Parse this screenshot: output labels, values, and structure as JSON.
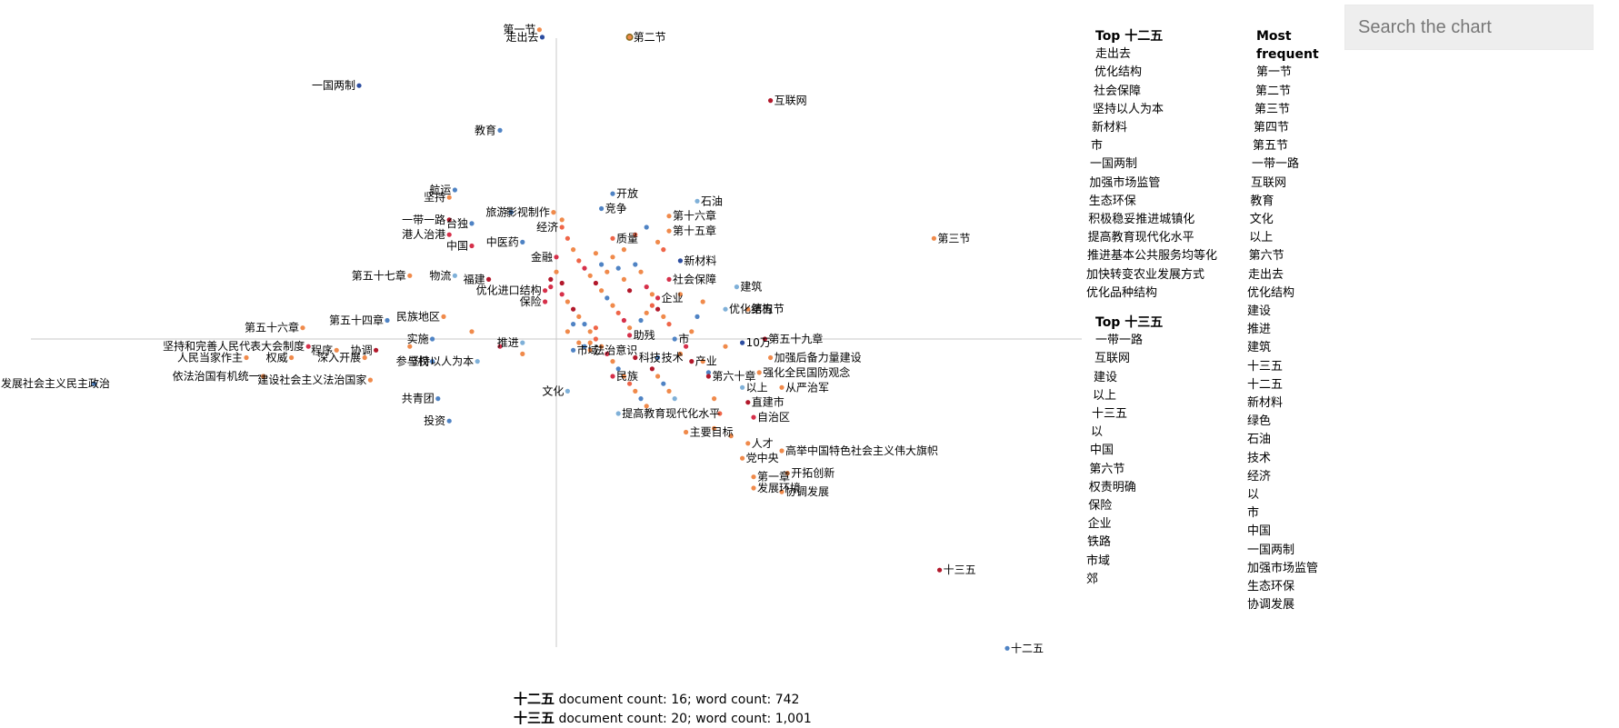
{
  "search": {
    "placeholder": "Search the chart"
  },
  "panels": {
    "top_a_title": "Top 十二五",
    "top_a_terms": [
      "走出去",
      "优化结构",
      "社会保障",
      "坚持以人为本",
      "新材料",
      "市",
      "一国两制",
      "加强市场监管",
      "生态环保",
      "积极稳妥推进城镇化",
      "提高教育现代化水平",
      "推进基本公共服务均等化",
      "加快转变农业发展方式",
      "优化品种结构"
    ],
    "top_b_title": "Top 十三五",
    "top_b_terms": [
      "一带一路",
      "互联网",
      "建设",
      "以上",
      "十三五",
      "以",
      "中国",
      "第六节",
      "权责明确",
      "保险",
      "企业",
      "铁路",
      "市域",
      "郊"
    ],
    "freq_title": "Most frequent",
    "freq_terms": [
      "第一节",
      "第二节",
      "第三节",
      "第四节",
      "第五节",
      "一带一路",
      "互联网",
      "教育",
      "文化",
      "以上",
      "第六节",
      "走出去",
      "优化结构",
      "建设",
      "推进",
      "建筑",
      "十三五",
      "十二五",
      "新材料",
      "绿色",
      "石油",
      "技术",
      "经济",
      "以",
      "市",
      "中国",
      "一国两制",
      "加强市场监管",
      "生态环保",
      "协调发展"
    ]
  },
  "footer": {
    "cat_a": "十二五",
    "cat_a_text": "document count: 16; word count: 742",
    "cat_b": "十三五",
    "cat_b_text": "document count: 20; word count: 1,001"
  },
  "chart_data": {
    "type": "scatter",
    "title": "",
    "xlabel": "",
    "ylabel": "",
    "xlim": [
      -1,
      1
    ],
    "ylim": [
      -1,
      1
    ],
    "grid": false,
    "categories": [
      "十二五",
      "十三五"
    ],
    "colors": {
      "strong_a": "#2c4da0",
      "mid_a": "#4f83c4",
      "light_a": "#7fb0d8",
      "strong_b": "#b2182b",
      "mid_b": "#d6304a",
      "light_b": "#ef6548",
      "neutral": "#f08a4b",
      "highlight_ring": "#8a6d1e"
    },
    "labeled_points": [
      {
        "term": "第一节",
        "x": -0.03,
        "y": 0.83,
        "c": "neutral"
      },
      {
        "term": "走出去",
        "x": -0.025,
        "y": 0.81,
        "c": "strong_a"
      },
      {
        "term": "第二节",
        "x": 0.13,
        "y": 0.81,
        "c": "highlight"
      },
      {
        "term": "一国两制",
        "x": -0.35,
        "y": 0.68,
        "c": "strong_a"
      },
      {
        "term": "互联网",
        "x": 0.38,
        "y": 0.64,
        "c": "strong_b"
      },
      {
        "term": "教育",
        "x": -0.1,
        "y": 0.56,
        "c": "mid_a"
      },
      {
        "term": "航运",
        "x": -0.18,
        "y": 0.4,
        "c": "mid_a"
      },
      {
        "term": "坚持",
        "x": -0.19,
        "y": 0.38,
        "c": "neutral"
      },
      {
        "term": "旅游",
        "x": -0.08,
        "y": 0.34,
        "c": "mid_a"
      },
      {
        "term": "影视制作",
        "x": -0.005,
        "y": 0.34,
        "c": "neutral"
      },
      {
        "term": "开放",
        "x": 0.1,
        "y": 0.39,
        "c": "mid_a"
      },
      {
        "term": "竞争",
        "x": 0.08,
        "y": 0.35,
        "c": "mid_a"
      },
      {
        "term": "石油",
        "x": 0.25,
        "y": 0.37,
        "c": "light_a"
      },
      {
        "term": "一带一路",
        "x": -0.19,
        "y": 0.32,
        "c": "strong_b"
      },
      {
        "term": "台独",
        "x": -0.15,
        "y": 0.31,
        "c": "mid_a"
      },
      {
        "term": "港人治港",
        "x": -0.19,
        "y": 0.28,
        "c": "mid_b"
      },
      {
        "term": "经济",
        "x": 0.01,
        "y": 0.3,
        "c": "light_b"
      },
      {
        "term": "中医药",
        "x": -0.06,
        "y": 0.26,
        "c": "mid_a"
      },
      {
        "term": "质量",
        "x": 0.1,
        "y": 0.27,
        "c": "light_b"
      },
      {
        "term": "第十六章",
        "x": 0.2,
        "y": 0.33,
        "c": "neutral"
      },
      {
        "term": "第十五章",
        "x": 0.2,
        "y": 0.29,
        "c": "neutral"
      },
      {
        "term": "中国",
        "x": -0.15,
        "y": 0.25,
        "c": "mid_b"
      },
      {
        "term": "金融",
        "x": 0.0,
        "y": 0.22,
        "c": "mid_b"
      },
      {
        "term": "新材料",
        "x": 0.22,
        "y": 0.21,
        "c": "strong_a"
      },
      {
        "term": "第三节",
        "x": 0.67,
        "y": 0.27,
        "c": "neutral"
      },
      {
        "term": "第五十七章",
        "x": -0.26,
        "y": 0.17,
        "c": "neutral"
      },
      {
        "term": "物流",
        "x": -0.18,
        "y": 0.17,
        "c": "light_a"
      },
      {
        "term": "福建",
        "x": -0.12,
        "y": 0.16,
        "c": "strong_b"
      },
      {
        "term": "社会保障",
        "x": 0.2,
        "y": 0.16,
        "c": "mid_b"
      },
      {
        "term": "优化进口结构",
        "x": -0.02,
        "y": 0.13,
        "c": "mid_b"
      },
      {
        "term": "建筑",
        "x": 0.32,
        "y": 0.14,
        "c": "light_a"
      },
      {
        "term": "企业",
        "x": 0.18,
        "y": 0.11,
        "c": "mid_b"
      },
      {
        "term": "保险",
        "x": -0.02,
        "y": 0.1,
        "c": "mid_b"
      },
      {
        "term": "优化结构",
        "x": 0.3,
        "y": 0.08,
        "c": "light_a"
      },
      {
        "term": "第五节",
        "x": 0.34,
        "y": 0.08,
        "c": "neutral"
      },
      {
        "term": "民族地区",
        "x": -0.2,
        "y": 0.06,
        "c": "neutral"
      },
      {
        "term": "第五十四章",
        "x": -0.3,
        "y": 0.05,
        "c": "mid_a"
      },
      {
        "term": "第五十六章",
        "x": -0.45,
        "y": 0.03,
        "c": "neutral"
      },
      {
        "term": "实施",
        "x": -0.22,
        "y": 0.0,
        "c": "mid_a"
      },
      {
        "term": "助残",
        "x": 0.13,
        "y": 0.01,
        "c": "mid_b"
      },
      {
        "term": "推进",
        "x": -0.06,
        "y": -0.01,
        "c": "light_a"
      },
      {
        "term": "市",
        "x": 0.21,
        "y": 0.0,
        "c": "mid_a"
      },
      {
        "term": "10万",
        "x": 0.33,
        "y": -0.01,
        "c": "strong_a"
      },
      {
        "term": "第五十九章",
        "x": 0.37,
        "y": 0.0,
        "c": "strong_b"
      },
      {
        "term": "坚持和完善人民代表大会制度",
        "x": -0.44,
        "y": -0.02,
        "c": "mid_b"
      },
      {
        "term": "程序",
        "x": -0.39,
        "y": -0.03,
        "c": "neutral"
      },
      {
        "term": "协调",
        "x": -0.32,
        "y": -0.03,
        "c": "strong_b"
      },
      {
        "term": "市域",
        "x": 0.03,
        "y": -0.03,
        "c": "mid_a"
      },
      {
        "term": "法治意识",
        "x": 0.06,
        "y": -0.03,
        "c": "neutral"
      },
      {
        "term": "科技",
        "x": 0.14,
        "y": -0.05,
        "c": "strong_b"
      },
      {
        "term": "技术",
        "x": 0.18,
        "y": -0.05,
        "c": "mid_a"
      },
      {
        "term": "产业",
        "x": 0.24,
        "y": -0.06,
        "c": "strong_b"
      },
      {
        "term": "加强后备力量建设",
        "x": 0.38,
        "y": -0.05,
        "c": "neutral"
      },
      {
        "term": "人民当家作主",
        "x": -0.55,
        "y": -0.05,
        "c": "neutral"
      },
      {
        "term": "权威",
        "x": -0.47,
        "y": -0.05,
        "c": "neutral"
      },
      {
        "term": "深入开展",
        "x": -0.34,
        "y": -0.05,
        "c": "neutral"
      },
      {
        "term": "参与权",
        "x": -0.22,
        "y": -0.06,
        "c": "mid_a"
      },
      {
        "term": "坚持以人为本",
        "x": -0.14,
        "y": -0.06,
        "c": "light_a"
      },
      {
        "term": "民族",
        "x": 0.1,
        "y": -0.1,
        "c": "mid_b"
      },
      {
        "term": "第六十章",
        "x": 0.27,
        "y": -0.1,
        "c": "strong_b"
      },
      {
        "term": "强化全民国防观念",
        "x": 0.36,
        "y": -0.09,
        "c": "neutral"
      },
      {
        "term": "依法治国有机统一",
        "x": -0.52,
        "y": -0.1,
        "c": "neutral"
      },
      {
        "term": "建设社会主义法治国家",
        "x": -0.33,
        "y": -0.11,
        "c": "neutral"
      },
      {
        "term": "发展社会主义民主政治",
        "x": -0.82,
        "y": -0.12,
        "c": "mid_a"
      },
      {
        "term": "以上",
        "x": 0.33,
        "y": -0.13,
        "c": "light_a"
      },
      {
        "term": "文化",
        "x": 0.02,
        "y": -0.14,
        "c": "light_a"
      },
      {
        "term": "从严治军",
        "x": 0.4,
        "y": -0.13,
        "c": "neutral"
      },
      {
        "term": "直建市",
        "x": 0.34,
        "y": -0.17,
        "c": "strong_b"
      },
      {
        "term": "共青团",
        "x": -0.21,
        "y": -0.16,
        "c": "mid_a"
      },
      {
        "term": "自治区",
        "x": 0.35,
        "y": -0.21,
        "c": "mid_b"
      },
      {
        "term": "投资",
        "x": -0.19,
        "y": -0.22,
        "c": "mid_a"
      },
      {
        "term": "提高教育现代化水平",
        "x": 0.11,
        "y": -0.2,
        "c": "light_a"
      },
      {
        "term": "主要目标",
        "x": 0.23,
        "y": -0.25,
        "c": "neutral"
      },
      {
        "term": "人才",
        "x": 0.34,
        "y": -0.28,
        "c": "neutral"
      },
      {
        "term": "高举中国特色社会主义伟大旗帜",
        "x": 0.4,
        "y": -0.3,
        "c": "neutral"
      },
      {
        "term": "党中央",
        "x": 0.33,
        "y": -0.32,
        "c": "neutral"
      },
      {
        "term": "开拓创新",
        "x": 0.41,
        "y": -0.36,
        "c": "neutral"
      },
      {
        "term": "第一章",
        "x": 0.35,
        "y": -0.37,
        "c": "neutral"
      },
      {
        "term": "发展环境",
        "x": 0.35,
        "y": -0.4,
        "c": "neutral"
      },
      {
        "term": "协调发展",
        "x": 0.4,
        "y": -0.41,
        "c": "neutral"
      },
      {
        "term": "十三五",
        "x": 0.68,
        "y": -0.62,
        "c": "strong_b"
      },
      {
        "term": "十二五",
        "x": 0.8,
        "y": -0.83,
        "c": "mid_a"
      }
    ],
    "unlabeled_points": [
      [
        0.01,
        0.32,
        "neutral"
      ],
      [
        0.02,
        0.27,
        "light_b"
      ],
      [
        0.03,
        0.24,
        "neutral"
      ],
      [
        0.04,
        0.21,
        "light_b"
      ],
      [
        0.05,
        0.19,
        "mid_b"
      ],
      [
        0.06,
        0.17,
        "neutral"
      ],
      [
        0.07,
        0.15,
        "strong_b"
      ],
      [
        0.08,
        0.13,
        "neutral"
      ],
      [
        0.09,
        0.11,
        "mid_a"
      ],
      [
        0.1,
        0.09,
        "neutral"
      ],
      [
        0.11,
        0.07,
        "light_b"
      ],
      [
        0.12,
        0.05,
        "mid_b"
      ],
      [
        0.13,
        0.03,
        "neutral"
      ],
      [
        0.14,
        0.2,
        "mid_a"
      ],
      [
        0.15,
        0.18,
        "neutral"
      ],
      [
        0.16,
        0.14,
        "mid_b"
      ],
      [
        0.17,
        0.12,
        "neutral"
      ],
      [
        0.18,
        0.08,
        "strong_b"
      ],
      [
        0.19,
        0.06,
        "neutral"
      ],
      [
        0.2,
        0.04,
        "light_b"
      ],
      [
        0.01,
        0.12,
        "mid_b"
      ],
      [
        0.02,
        0.1,
        "neutral"
      ],
      [
        0.03,
        0.08,
        "strong_b"
      ],
      [
        0.04,
        0.06,
        "neutral"
      ],
      [
        0.05,
        0.04,
        "mid_a"
      ],
      [
        0.06,
        0.02,
        "neutral"
      ],
      [
        0.07,
        0.0,
        "light_b"
      ],
      [
        0.08,
        -0.02,
        "neutral"
      ],
      [
        0.09,
        -0.04,
        "mid_b"
      ],
      [
        0.1,
        -0.06,
        "neutral"
      ],
      [
        0.11,
        -0.08,
        "mid_a"
      ],
      [
        0.12,
        -0.1,
        "neutral"
      ],
      [
        0.13,
        -0.12,
        "light_b"
      ],
      [
        0.14,
        -0.14,
        "neutral"
      ],
      [
        0.15,
        -0.16,
        "mid_a"
      ],
      [
        0.16,
        -0.18,
        "neutral"
      ],
      [
        0.17,
        -0.08,
        "strong_b"
      ],
      [
        0.18,
        -0.1,
        "neutral"
      ],
      [
        0.19,
        -0.12,
        "mid_a"
      ],
      [
        0.2,
        -0.14,
        "neutral"
      ],
      [
        0.21,
        -0.16,
        "light_a"
      ],
      [
        0.22,
        -0.04,
        "neutral"
      ],
      [
        0.23,
        -0.02,
        "mid_b"
      ],
      [
        0.24,
        0.02,
        "neutral"
      ],
      [
        0.25,
        0.06,
        "mid_a"
      ],
      [
        0.26,
        0.1,
        "neutral"
      ],
      [
        0.12,
        0.24,
        "neutral"
      ],
      [
        0.14,
        0.28,
        "light_b"
      ],
      [
        0.16,
        0.3,
        "mid_a"
      ],
      [
        0.18,
        0.26,
        "neutral"
      ],
      [
        0.19,
        0.24,
        "light_b"
      ],
      [
        0.1,
        0.22,
        "neutral"
      ],
      [
        0.11,
        0.19,
        "mid_a"
      ],
      [
        0.12,
        0.16,
        "neutral"
      ],
      [
        0.13,
        0.13,
        "strong_b"
      ],
      [
        0.09,
        0.18,
        "neutral"
      ],
      [
        0.08,
        0.2,
        "mid_a"
      ],
      [
        0.07,
        0.23,
        "neutral"
      ],
      [
        -0.01,
        0.16,
        "strong_b"
      ],
      [
        -0.01,
        0.14,
        "mid_b"
      ],
      [
        0.0,
        0.18,
        "neutral"
      ],
      [
        0.01,
        0.15,
        "strong_b"
      ],
      [
        0.02,
        0.02,
        "neutral"
      ],
      [
        0.03,
        0.04,
        "mid_a"
      ],
      [
        0.04,
        -0.01,
        "neutral"
      ],
      [
        0.05,
        -0.02,
        "mid_a"
      ],
      [
        0.06,
        -0.01,
        "neutral"
      ],
      [
        0.07,
        0.03,
        "light_b"
      ],
      [
        0.15,
        0.05,
        "mid_a"
      ],
      [
        0.16,
        0.07,
        "neutral"
      ],
      [
        0.17,
        0.09,
        "light_b"
      ],
      [
        0.22,
        0.12,
        "neutral"
      ],
      [
        0.26,
        -0.06,
        "neutral"
      ],
      [
        0.27,
        -0.09,
        "mid_a"
      ],
      [
        0.28,
        -0.16,
        "neutral"
      ],
      [
        0.29,
        -0.2,
        "light_b"
      ],
      [
        -0.06,
        -0.04,
        "neutral"
      ],
      [
        -0.1,
        -0.02,
        "mid_b"
      ],
      [
        -0.15,
        0.02,
        "neutral"
      ],
      [
        -0.26,
        -0.02,
        "neutral"
      ],
      [
        0.28,
        -0.24,
        "neutral"
      ],
      [
        0.31,
        -0.26,
        "neutral"
      ],
      [
        0.3,
        -0.02,
        "neutral"
      ]
    ]
  }
}
